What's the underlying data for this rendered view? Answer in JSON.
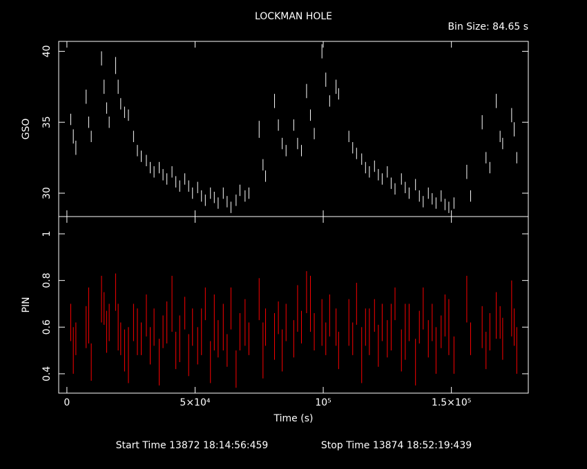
{
  "chart_data": [
    {
      "type": "errorbar",
      "title": "LOCKMAN HOLE",
      "annotation": "Bin Size: 84.65 s",
      "ylabel": "GSO",
      "xlim": [
        -3200,
        180000
      ],
      "xticks": [
        0,
        50000,
        100000,
        150000
      ],
      "ylim": [
        28.35,
        40.7
      ],
      "yticks": [
        30,
        35,
        40
      ],
      "series": [
        {
          "color": "#ffffff",
          "x": [
            1500,
            2500,
            3500,
            7500,
            8500,
            9500,
            13500,
            14500,
            15500,
            16500,
            19000,
            20000,
            21000,
            22500,
            24000,
            26000,
            27500,
            29000,
            31000,
            32500,
            34000,
            36000,
            37500,
            39000,
            41000,
            42500,
            44000,
            46000,
            47500,
            49000,
            51000,
            52500,
            54000,
            56000,
            57500,
            59000,
            61000,
            62500,
            64000,
            66000,
            67500,
            69500,
            71000,
            75000,
            76500,
            77500,
            81000,
            82500,
            84000,
            85500,
            88500,
            90000,
            91500,
            93500,
            95000,
            96500,
            99500,
            101000,
            102500,
            105000,
            106000,
            110000,
            111500,
            113000,
            115000,
            116500,
            118000,
            120000,
            121500,
            123000,
            125000,
            126500,
            128000,
            130500,
            132000,
            133500,
            136000,
            137500,
            139000,
            141000,
            142500,
            144000,
            146000,
            147500,
            149000,
            151000,
            156000,
            157500,
            162000,
            163500,
            165000,
            167500,
            169000,
            170000,
            173500,
            174500,
            175500
          ],
          "values": [
            35.2,
            34,
            33.2,
            36.8,
            35,
            34,
            39.5,
            37.5,
            36,
            35,
            39,
            37.5,
            36.3,
            35.7,
            35.5,
            34,
            33,
            32.6,
            32.3,
            31.8,
            31.5,
            31.8,
            31.3,
            31,
            31.5,
            30.8,
            30.5,
            31,
            30.5,
            30,
            30.4,
            29.8,
            29.5,
            30,
            29.7,
            29.3,
            30,
            29.4,
            29,
            29.5,
            30.2,
            29.8,
            30,
            34.5,
            32,
            31.2,
            36.5,
            34.8,
            33.5,
            33,
            34.8,
            33.5,
            33,
            37.2,
            35.5,
            34.2,
            40,
            38,
            36.5,
            37.5,
            37,
            34,
            33.2,
            32.8,
            32.4,
            31.8,
            31.5,
            31.9,
            31.3,
            31,
            31.5,
            30.7,
            30.3,
            31,
            30.4,
            30,
            30.6,
            29.8,
            29.4,
            30,
            29.6,
            29.3,
            29.8,
            29.2,
            29,
            29.3,
            31.5,
            29.8,
            35,
            32.5,
            31.8,
            36.5,
            34,
            33.5,
            35.5,
            34.5,
            32.5
          ],
          "errors": [
            0.4,
            0.5,
            0.5,
            0.5,
            0.4,
            0.4,
            0.5,
            0.5,
            0.4,
            0.4,
            0.6,
            0.5,
            0.4,
            0.4,
            0.4,
            0.4,
            0.4,
            0.4,
            0.4,
            0.4,
            0.4,
            0.4,
            0.4,
            0.4,
            0.4,
            0.4,
            0.4,
            0.4,
            0.4,
            0.4,
            0.4,
            0.4,
            0.4,
            0.4,
            0.4,
            0.4,
            0.4,
            0.4,
            0.4,
            0.4,
            0.4,
            0.4,
            0.4,
            0.6,
            0.4,
            0.4,
            0.5,
            0.4,
            0.4,
            0.4,
            0.4,
            0.4,
            0.4,
            0.5,
            0.4,
            0.4,
            0.5,
            0.5,
            0.4,
            0.5,
            0.4,
            0.4,
            0.4,
            0.4,
            0.4,
            0.4,
            0.4,
            0.4,
            0.4,
            0.4,
            0.4,
            0.4,
            0.4,
            0.4,
            0.4,
            0.4,
            0.4,
            0.4,
            0.4,
            0.4,
            0.4,
            0.4,
            0.4,
            0.4,
            0.4,
            0.4,
            0.5,
            0.4,
            0.5,
            0.4,
            0.4,
            0.5,
            0.4,
            0.4,
            0.5,
            0.5,
            0.4
          ]
        }
      ]
    },
    {
      "type": "errorbar",
      "ylabel": "PIN",
      "xlabel": "Time (s)",
      "footer": [
        "Start Time 13872 18:14:56:459",
        "Stop Time 13874 18:52:19:439"
      ],
      "xlim": [
        -3200,
        180000
      ],
      "xticks": [
        0,
        {
          "value": 50000,
          "label": "5×10⁴"
        },
        {
          "value": 100000,
          "label": "10⁵"
        },
        {
          "value": 150000,
          "label": "1.5×10⁵"
        }
      ],
      "ylim": [
        0.317,
        1.074
      ],
      "yticks": [
        0.4,
        0.6,
        0.8,
        1
      ],
      "series": [
        {
          "color": "#ff0000",
          "x": [
            1500,
            2500,
            3500,
            7500,
            8500,
            9500,
            13500,
            14500,
            15500,
            16500,
            19000,
            20000,
            21000,
            22500,
            24000,
            26000,
            27500,
            29000,
            31000,
            32500,
            34000,
            36000,
            37500,
            39000,
            41000,
            42500,
            44000,
            46000,
            47500,
            49000,
            51000,
            52500,
            54000,
            56000,
            57500,
            59000,
            61000,
            62500,
            64000,
            66000,
            67500,
            69500,
            71000,
            75000,
            76500,
            77500,
            81000,
            82500,
            84000,
            85500,
            88500,
            90000,
            91500,
            93500,
            95000,
            96500,
            99500,
            101000,
            102500,
            105000,
            106000,
            110000,
            111500,
            113000,
            115000,
            116500,
            118000,
            120000,
            121500,
            123000,
            125000,
            126500,
            128000,
            130500,
            132000,
            133500,
            136000,
            137500,
            139000,
            141000,
            142500,
            144000,
            146000,
            147500,
            149000,
            151000,
            156000,
            157500,
            162000,
            163500,
            165000,
            167500,
            169000,
            170000,
            173500,
            174500,
            175500
          ],
          "values": [
            0.62,
            0.5,
            0.55,
            0.6,
            0.65,
            0.45,
            0.72,
            0.68,
            0.58,
            0.62,
            0.75,
            0.6,
            0.55,
            0.5,
            0.48,
            0.62,
            0.58,
            0.55,
            0.65,
            0.52,
            0.6,
            0.45,
            0.58,
            0.62,
            0.7,
            0.5,
            0.55,
            0.66,
            0.48,
            0.6,
            0.52,
            0.58,
            0.7,
            0.45,
            0.62,
            0.55,
            0.6,
            0.5,
            0.68,
            0.42,
            0.58,
            0.62,
            0.55,
            0.72,
            0.5,
            0.6,
            0.56,
            0.64,
            0.5,
            0.62,
            0.55,
            0.68,
            0.6,
            0.75,
            0.7,
            0.58,
            0.62,
            0.55,
            0.65,
            0.6,
            0.5,
            0.62,
            0.55,
            0.7,
            0.48,
            0.6,
            0.58,
            0.65,
            0.52,
            0.62,
            0.55,
            0.6,
            0.7,
            0.5,
            0.58,
            0.62,
            0.45,
            0.6,
            0.68,
            0.55,
            0.62,
            0.5,
            0.58,
            0.65,
            0.6,
            0.48,
            0.72,
            0.55,
            0.6,
            0.5,
            0.58,
            0.65,
            0.62,
            0.55,
            0.68,
            0.6,
            0.5
          ],
          "errors": [
            0.08,
            0.1,
            0.07,
            0.09,
            0.12,
            0.08,
            0.1,
            0.07,
            0.09,
            0.08,
            0.08,
            0.1,
            0.07,
            0.09,
            0.12,
            0.08,
            0.1,
            0.07,
            0.09,
            0.08,
            0.08,
            0.1,
            0.07,
            0.09,
            0.12,
            0.08,
            0.1,
            0.07,
            0.09,
            0.08,
            0.08,
            0.1,
            0.07,
            0.09,
            0.12,
            0.08,
            0.1,
            0.07,
            0.09,
            0.08,
            0.08,
            0.1,
            0.07,
            0.09,
            0.12,
            0.08,
            0.1,
            0.07,
            0.09,
            0.08,
            0.08,
            0.1,
            0.07,
            0.09,
            0.12,
            0.08,
            0.1,
            0.07,
            0.09,
            0.08,
            0.08,
            0.1,
            0.07,
            0.09,
            0.12,
            0.08,
            0.1,
            0.07,
            0.09,
            0.08,
            0.08,
            0.1,
            0.07,
            0.09,
            0.12,
            0.08,
            0.1,
            0.07,
            0.09,
            0.08,
            0.08,
            0.1,
            0.07,
            0.09,
            0.12,
            0.08,
            0.1,
            0.07,
            0.09,
            0.08,
            0.08,
            0.1,
            0.07,
            0.09,
            0.12,
            0.08,
            0.1
          ]
        }
      ]
    }
  ]
}
